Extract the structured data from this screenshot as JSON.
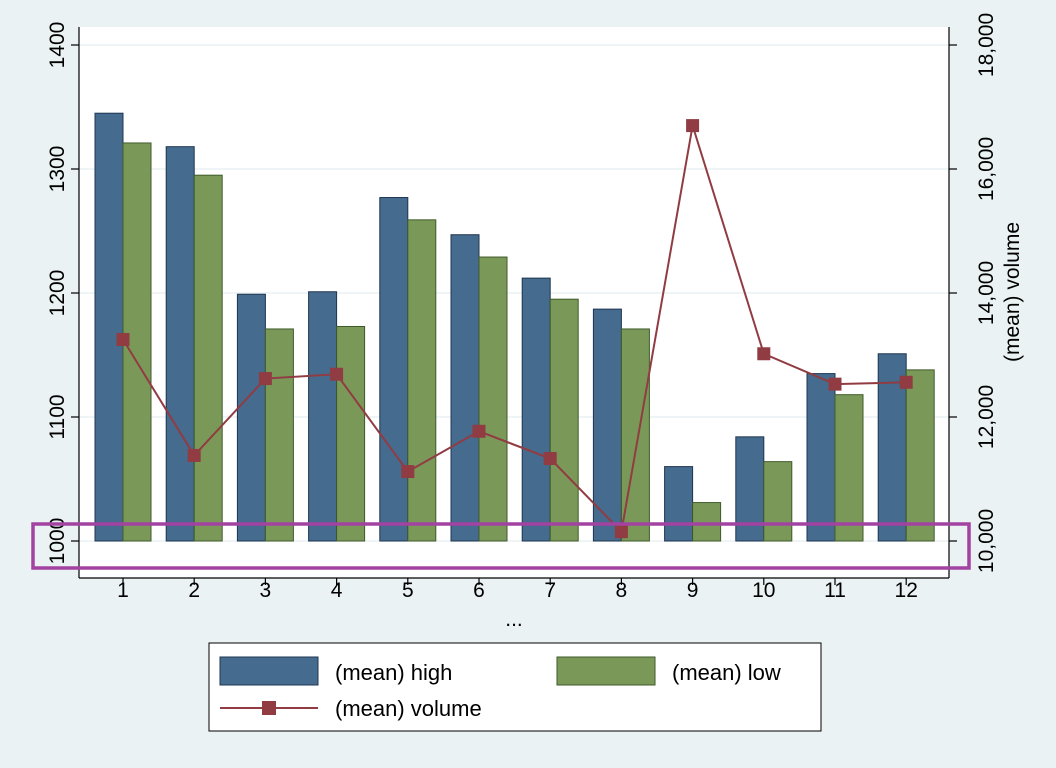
{
  "chart_data": {
    "type": "bar",
    "categories": [
      "1",
      "2",
      "3",
      "4",
      "5",
      "6",
      "7",
      "8",
      "9",
      "10",
      "11",
      "12"
    ],
    "xlabel": "...",
    "ylabel": "",
    "ylim": [
      1000,
      1400
    ],
    "yticks": [
      "1000",
      "1100",
      "1200",
      "1300",
      "1400"
    ],
    "y2label": "(mean) volume",
    "y2lim": [
      10000,
      18000
    ],
    "y2ticks": [
      "10,000",
      "12,000",
      "14,000",
      "16,000",
      "18,000"
    ],
    "grid": "horizontal",
    "legend_position": "bottom",
    "series": [
      {
        "name": "(mean) high",
        "kind": "bar",
        "axis": "left",
        "color": "#456b8f",
        "values": [
          1345,
          1318,
          1199,
          1201,
          1277,
          1247,
          1212,
          1187,
          1060,
          1084,
          1135,
          1151
        ]
      },
      {
        "name": "(mean) low",
        "kind": "bar",
        "axis": "left",
        "color": "#7a9959",
        "values": [
          1321,
          1295,
          1171,
          1173,
          1259,
          1229,
          1195,
          1171,
          1031,
          1064,
          1118,
          1138
        ]
      },
      {
        "name": "(mean) volume",
        "kind": "line",
        "axis": "right",
        "color": "#903c42",
        "values": [
          13250,
          11380,
          12620,
          12690,
          11120,
          11770,
          11330,
          10150,
          16700,
          13020,
          12530,
          12560
        ]
      }
    ]
  },
  "annotation": {
    "shape": "rectangle",
    "color": "#a243a2"
  }
}
